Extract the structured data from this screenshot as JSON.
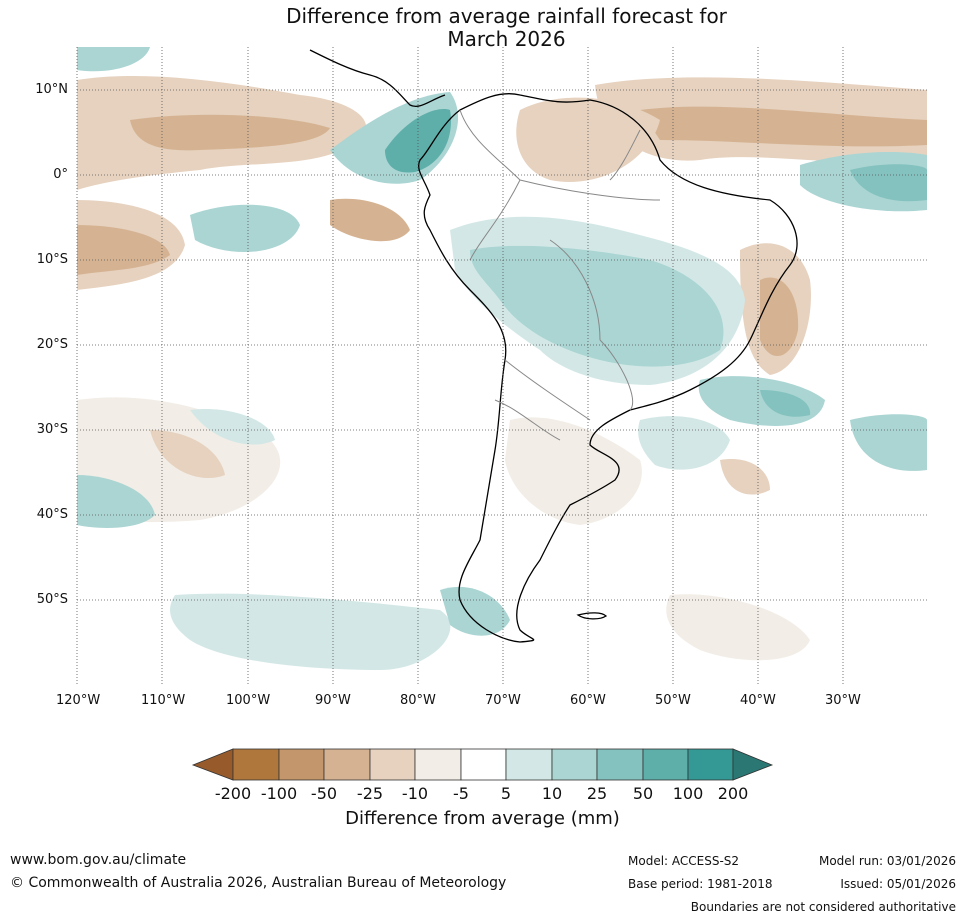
{
  "title": {
    "line1": "Difference from average rainfall forecast for",
    "line2": "March 2026"
  },
  "axes": {
    "lat_labels": [
      "10°N",
      "0°",
      "10°S",
      "20°S",
      "30°S",
      "40°S",
      "50°S"
    ],
    "lon_labels": [
      "120°W",
      "110°W",
      "100°W",
      "90°W",
      "80°W",
      "70°W",
      "60°W",
      "50°W",
      "40°W",
      "30°W"
    ]
  },
  "colorbar": {
    "label": "Difference from average (mm)",
    "ticks": [
      "-200",
      "-100",
      "-50",
      "-25",
      "-10",
      "-5",
      "5",
      "10",
      "25",
      "50",
      "100",
      "200"
    ],
    "colors": [
      "#975a2a",
      "#b0773d",
      "#c4966b",
      "#d5b392",
      "#e6d2bf",
      "#f2ede6",
      "#ffffff",
      "#d3e8e6",
      "#aad5d3",
      "#84c2bf",
      "#5eaeaa",
      "#349894",
      "#2a7774"
    ]
  },
  "footer": {
    "website": "www.bom.gov.au/climate",
    "copyright": "© Commonwealth of Australia 2026, Australian Bureau of Meteorology",
    "model": "Model: ACCESS-S2",
    "base_period": "Base period: 1981-2018",
    "model_run": "Model run: 03/01/2026",
    "issued": "Issued: 05/01/2026",
    "disclaimer": "Boundaries are not considered authoritative"
  }
}
